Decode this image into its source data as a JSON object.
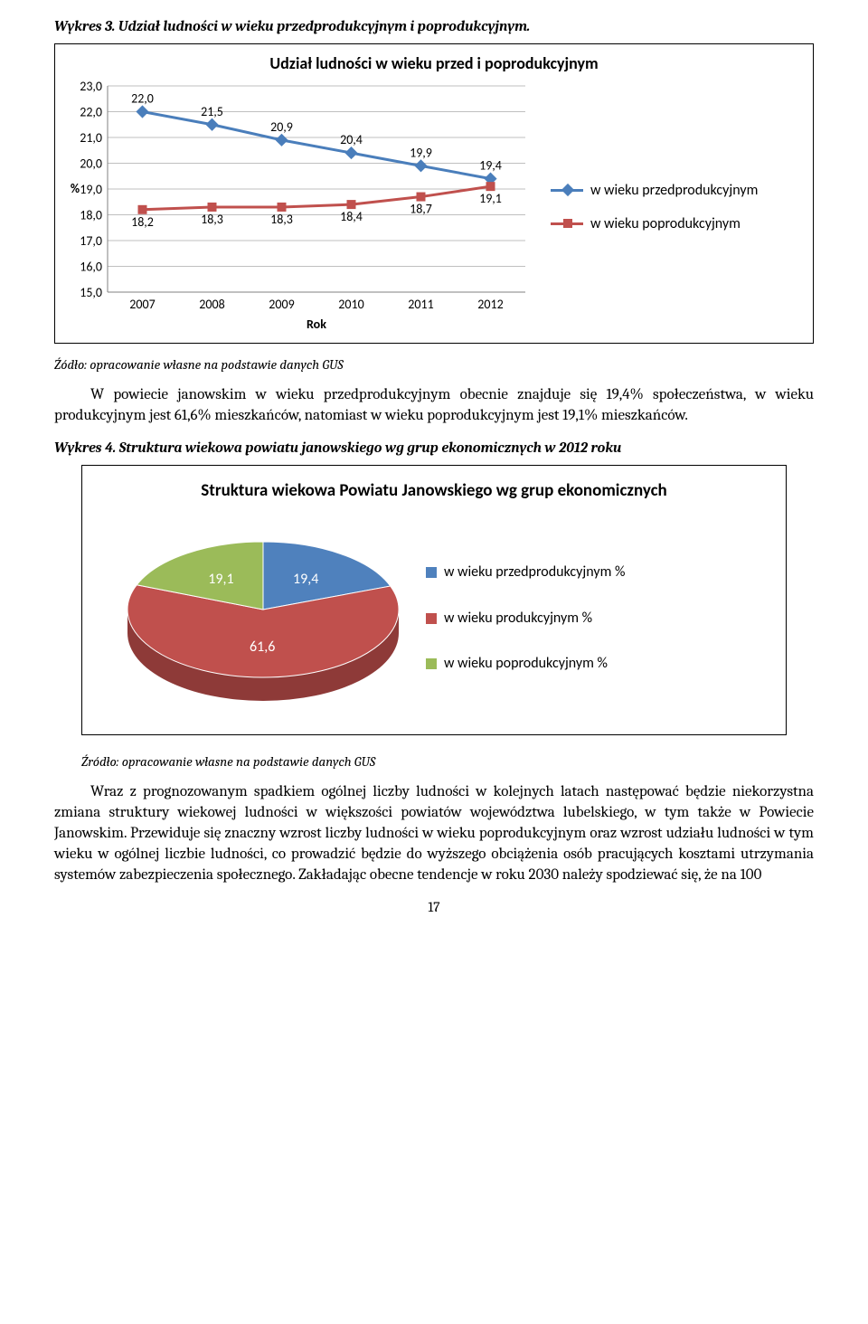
{
  "wykres3": {
    "caption": "Wykres 3. Udział ludności w wieku przedprodukcyjnym i poprodukcyjnym.",
    "title": "Udział ludności w wieku przed i poprodukcyjnym",
    "y_axis_label": "%",
    "x_axis_label": "Rok",
    "ylim": [
      15.0,
      23.0
    ],
    "ytick_step": 1.0,
    "yticks": [
      "23,0",
      "22,0",
      "21,0",
      "20,0",
      "19,0",
      "18,0",
      "17,0",
      "16,0",
      "15,0"
    ],
    "years": [
      2007,
      2008,
      2009,
      2010,
      2011,
      2012
    ],
    "series": [
      {
        "name": "w wieku przedprodukcyjnym",
        "color": "#4a7ebb",
        "marker": "diamond",
        "values": [
          22.0,
          21.5,
          20.9,
          20.4,
          19.9,
          19.4
        ],
        "labels": [
          "22,0",
          "21,5",
          "20,9",
          "20,4",
          "19,9",
          "19,4"
        ]
      },
      {
        "name": "w wieku poprodukcyjnym",
        "color": "#c0504d",
        "marker": "square",
        "values": [
          18.2,
          18.3,
          18.3,
          18.4,
          18.7,
          19.1
        ],
        "labels": [
          "18,2",
          "18,3",
          "18,3",
          "18,4",
          "18,7",
          "19,1"
        ]
      }
    ],
    "grid_color": "#bfbfbf",
    "background": "#ffffff"
  },
  "source1": "Źódło: opracowanie własne na podstawie danych GUS",
  "para1": "W powiecie janowskim w wieku przedprodukcyjnym obecnie znajduje się 19,4% społeczeństwa, w wieku produkcyjnym jest 61,6% mieszkańców, natomiast w wieku poprodukcyjnym jest 19,1% mieszkańców.",
  "wykres4": {
    "caption": "Wykres 4. Struktura wiekowa powiatu janowskiego wg grup ekonomicznych w 2012 roku",
    "title": "Struktura wiekowa Powiatu Janowskiego wg grup ekonomicznych",
    "slices": [
      {
        "label": "w wieku przedprodukcyjnym %",
        "value": 19.4,
        "value_label": "19,4",
        "color": "#4f81bd",
        "side": "#2e5b93"
      },
      {
        "label": "w wieku produkcyjnym %",
        "value": 61.6,
        "value_label": "61,6",
        "color": "#c0504d",
        "side": "#8e3a38"
      },
      {
        "label": "w wieku poprodukcyjnym %",
        "value": 19.1,
        "value_label": "19,1",
        "color": "#9bbb59",
        "side": "#71893f"
      }
    ],
    "label_color": "#ffffff",
    "label_fontsize": 16
  },
  "source2": "Źródło: opracowanie własne na podstawie danych GUS",
  "para2": "Wraz z prognozowanym spadkiem ogólnej liczby ludności w kolejnych latach następować będzie niekorzystna zmiana struktury wiekowej ludności w większości powiatów województwa lubelskiego, w tym także w Powiecie Janowskim. Przewiduje się znaczny wzrost liczby ludności w wieku poprodukcyjnym oraz wzrost udziału ludności w tym wieku w ogólnej liczbie ludności, co prowadzić będzie do wyższego obciążenia osób pracujących kosztami utrzymania systemów zabezpieczenia społecznego. Zakładając obecne tendencje w roku 2030 należy spodziewać się, że na 100",
  "page_number": "17"
}
